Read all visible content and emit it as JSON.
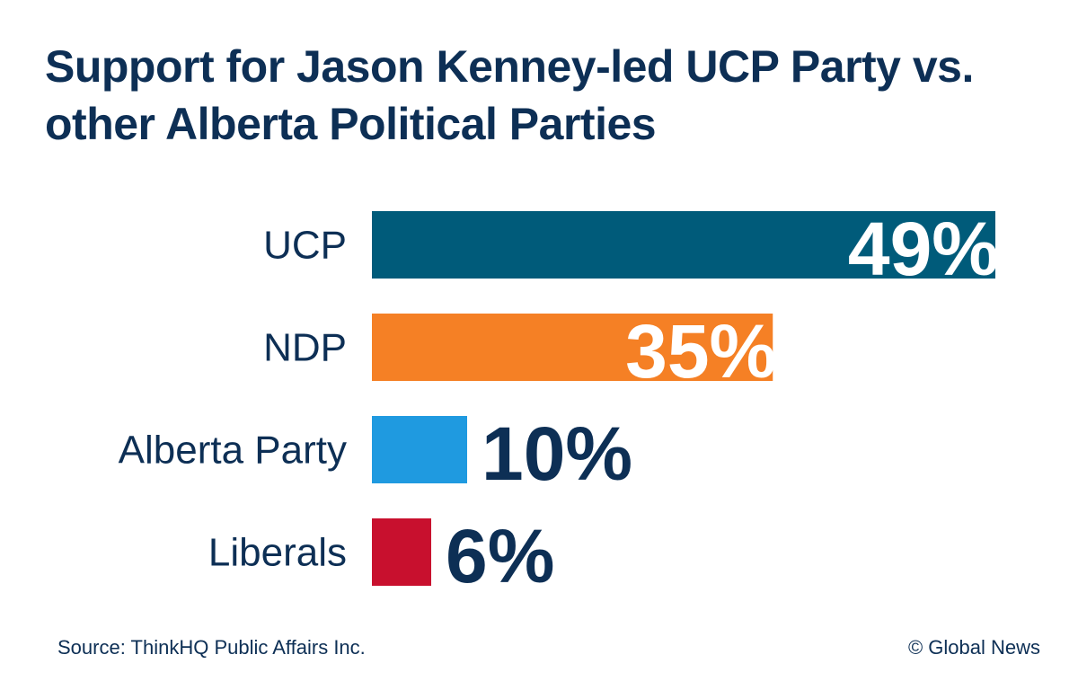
{
  "chart_data": {
    "type": "bar",
    "orientation": "horizontal",
    "title": "Support for Jason Kenney-led UCP Party vs. other Alberta Political Parties",
    "categories": [
      "UCP",
      "NDP",
      "Alberta Party",
      "Liberals"
    ],
    "values": [
      49,
      35,
      10,
      6
    ],
    "data_labels": [
      "49%",
      "35%",
      "10%",
      "6%"
    ],
    "colors": [
      "#005b7a",
      "#f58025",
      "#1f9ae0",
      "#c8102e"
    ],
    "xlabel": "",
    "ylabel": "",
    "grid": false
  },
  "footer": {
    "source": "Source: ThinkHQ Public Affairs Inc.",
    "credit": "© Global News"
  },
  "text_color": "#0d2f55"
}
